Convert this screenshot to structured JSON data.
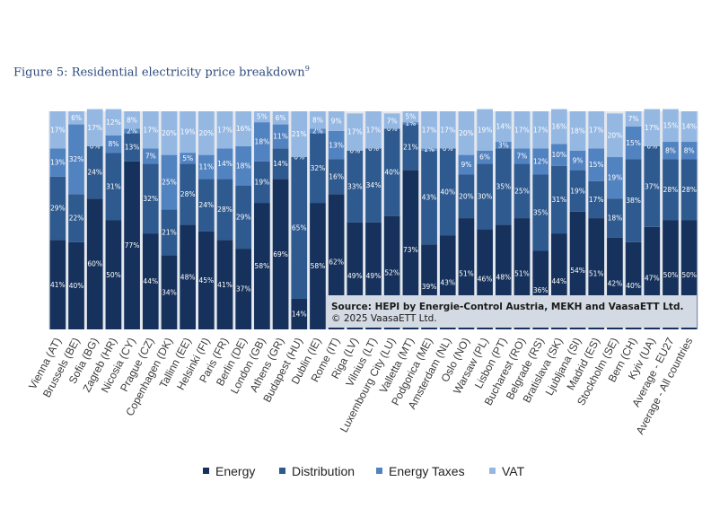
{
  "figure": {
    "title": "Figure 5: Residential electricity price breakdown",
    "footnote_mark": "9"
  },
  "chart_data": {
    "type": "bar",
    "stacked": true,
    "normalized": true,
    "title": "Figure 5: Residential electricity price breakdown",
    "xlabel": "",
    "ylabel": "",
    "ylim": [
      0,
      100
    ],
    "legend_position": "bottom",
    "colors": {
      "Energy": "#16325c",
      "Distribution": "#2e5a8f",
      "Energy Taxes": "#5283c1",
      "VAT": "#95b8e3"
    },
    "categories": [
      "Vienna (AT)",
      "Brussels (BE)",
      "Sofia (BG)",
      "Zagreb (HR)",
      "Nicosia (CY)",
      "Prague (CZ)",
      "Copenhagen (DK)",
      "Tallinn (EE)",
      "Helsinki (FI)",
      "Paris (FR)",
      "Berlin (DE)",
      "London (GB)",
      "Athens (GR)",
      "Budapest (HU)",
      "Dublin (IE)",
      "Rome (IT)",
      "Riga (LV)",
      "Vilnius (LT)",
      "Luxembourg City (LU)",
      "Valletta (MT)",
      "Podgorica (ME)",
      "Amsterdam (NL)",
      "Oslo (NO)",
      "Warsaw (PL)",
      "Lisbon (PT)",
      "Bucharest (RO)",
      "Belgrade (RS)",
      "Bratislava (SK)",
      "Ljubljana (SI)",
      "Madrid (ES)",
      "Stockholm (SE)",
      "Bern (CH)",
      "Kyiv (UA)",
      "Average - EU27",
      "Average - All countries"
    ],
    "series": [
      {
        "name": "Energy",
        "values": [
          41,
          40,
          60,
          50,
          77,
          44,
          34,
          48,
          45,
          41,
          37,
          58,
          69,
          14,
          58,
          62,
          49,
          49,
          52,
          73,
          39,
          43,
          51,
          46,
          48,
          51,
          36,
          44,
          54,
          51,
          42,
          40,
          47,
          50,
          50
        ]
      },
      {
        "name": "Distribution",
        "values": [
          29,
          22,
          24,
          31,
          13,
          32,
          21,
          28,
          24,
          28,
          29,
          19,
          14,
          65,
          32,
          16,
          33,
          34,
          40,
          21,
          43,
          40,
          20,
          30,
          35,
          25,
          35,
          31,
          19,
          17,
          18,
          38,
          37,
          28,
          28
        ]
      },
      {
        "name": "Energy Taxes",
        "values": [
          13,
          32,
          0,
          8,
          2,
          7,
          25,
          5,
          11,
          14,
          18,
          18,
          11,
          0,
          2,
          13,
          0,
          0,
          0,
          1,
          1,
          0,
          9,
          6,
          3,
          7,
          12,
          10,
          9,
          15,
          19,
          15,
          0,
          8,
          8
        ]
      },
      {
        "name": "VAT",
        "values": [
          17,
          6,
          17,
          12,
          8,
          17,
          20,
          19,
          20,
          17,
          16,
          5,
          6,
          21,
          8,
          9,
          17,
          17,
          7,
          5,
          17,
          17,
          20,
          19,
          14,
          17,
          17,
          16,
          18,
          17,
          20,
          7,
          17,
          15,
          14
        ]
      }
    ],
    "annotations": {
      "source_line1": "Source: HEPI by Energie-Control Austria, MEKH and VaasaETT Ltd.",
      "source_line2": "© 2025 VaasaETT Ltd."
    },
    "value_suffix": "%"
  }
}
